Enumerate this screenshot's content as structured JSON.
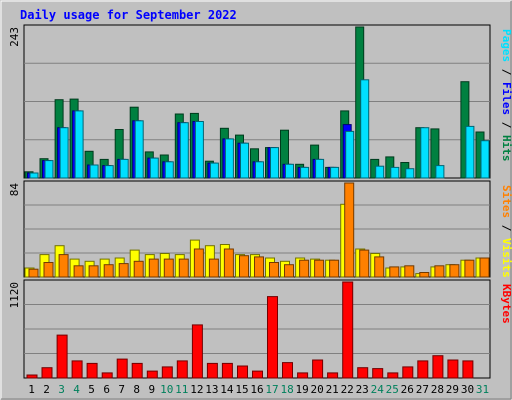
{
  "chart_data": {
    "type": "bar",
    "title": "Daily usage for September 2022",
    "categories": [
      "1",
      "2",
      "3",
      "4",
      "5",
      "6",
      "7",
      "8",
      "9",
      "10",
      "11",
      "12",
      "13",
      "14",
      "15",
      "16",
      "17",
      "18",
      "19",
      "20",
      "21",
      "22",
      "23",
      "24",
      "25",
      "26",
      "27",
      "28",
      "29",
      "30",
      "31"
    ],
    "weekend_days": [
      "3",
      "4",
      "10",
      "11",
      "17",
      "18",
      "24",
      "25",
      "31"
    ],
    "panels": [
      {
        "id": "pages-files-hits",
        "ymax_label": "243",
        "ymax": 243,
        "series": [
          {
            "name": "Hits",
            "color": "#008040",
            "values": [
              10,
              31,
              126,
              127,
              43,
              30,
              78,
              114,
              42,
              37,
              103,
              104,
              27,
              80,
              69,
              47,
              49,
              77,
              22,
              53,
              17,
              108,
              243,
              30,
              34,
              25,
              81,
              79,
              0,
              155,
              74
            ]
          },
          {
            "name": "Files",
            "color": "#0000ff",
            "values": [
              8,
              28,
              81,
              108,
              21,
              20,
              30,
              92,
              32,
              26,
              89,
              91,
              24,
              63,
              56,
              26,
              49,
              22,
              17,
              30,
              17,
              86,
              0,
              0,
              0,
              0,
              0,
              0,
              0,
              0,
              0
            ]
          },
          {
            "name": "Pages",
            "color": "#00e0ff",
            "values": [
              8,
              28,
              81,
              108,
              21,
              20,
              30,
              92,
              32,
              26,
              89,
              91,
              24,
              63,
              56,
              26,
              49,
              22,
              17,
              30,
              17,
              75,
              158,
              19,
              17,
              15,
              81,
              20,
              0,
              83,
              60
            ]
          }
        ],
        "legend_parts": [
          {
            "text": "Pages",
            "color": "#00e0ff"
          },
          {
            "text": " / ",
            "color": "#000000"
          },
          {
            "text": "Files",
            "color": "#0000ff"
          },
          {
            "text": " / ",
            "color": "#000000"
          },
          {
            "text": "Hits",
            "color": "#008040"
          }
        ]
      },
      {
        "id": "sites-visits",
        "ymax_label": "84",
        "ymax": 84,
        "series": [
          {
            "name": "Visits",
            "color": "#ffff00",
            "values": [
              8,
              20,
              28,
              16,
              14,
              16,
              17,
              24,
              20,
              21,
              20,
              33,
              28,
              29,
              20,
              20,
              17,
              14,
              17,
              16,
              15,
              65,
              25,
              21,
              8,
              9,
              3,
              9,
              11,
              15,
              17
            ]
          },
          {
            "name": "Sites",
            "color": "#ff8000",
            "values": [
              7,
              13,
              20,
              10,
              10,
              11,
              12,
              14,
              16,
              16,
              16,
              25,
              16,
              25,
              19,
              18,
              13,
              11,
              15,
              15,
              15,
              84,
              24,
              18,
              9,
              10,
              4,
              10,
              11,
              15,
              17
            ]
          }
        ],
        "legend_parts": [
          {
            "text": "Sites",
            "color": "#ff8000"
          },
          {
            "text": " / ",
            "color": "#000000"
          },
          {
            "text": "Visits",
            "color": "#ffff00"
          }
        ]
      },
      {
        "id": "kbytes",
        "ymax_label": "1120",
        "ymax": 1120,
        "series": [
          {
            "name": "KBytes",
            "color": "#ff0000",
            "values": [
              35,
              120,
              500,
              200,
              170,
              60,
              220,
              170,
              80,
              130,
              200,
              620,
              170,
              170,
              140,
              80,
              950,
              180,
              60,
              210,
              60,
              1120,
              120,
              110,
              60,
              130,
              200,
              260,
              210,
              200,
              0
            ]
          }
        ],
        "legend_parts": [
          {
            "text": "KBytes",
            "color": "#ff0000"
          }
        ]
      }
    ],
    "colors": {
      "background": "#c0c0c0",
      "title": "#0000ff",
      "weekday_label": "#000000",
      "weekend_label": "#00805c"
    },
    "grid": true,
    "legend": "right-vertical"
  }
}
